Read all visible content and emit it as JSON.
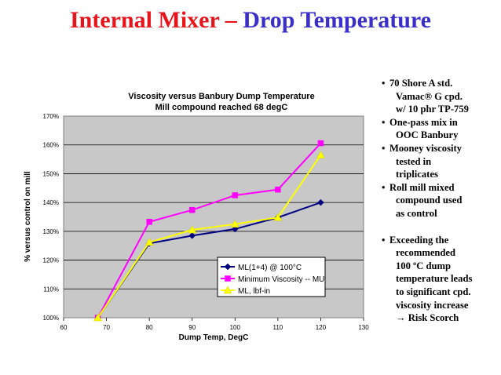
{
  "slide": {
    "title_part1": "Internal Mixer – ",
    "title_part2": "Drop Temperature",
    "colors": {
      "title_red": "#e8141c",
      "title_blue": "#3a2fc8"
    }
  },
  "chart_data": {
    "type": "line",
    "title": "Viscosity versus Banbury Dump Temperature",
    "subtitle": "Mill compound reached 68 degC",
    "xlabel": "Dump Temp, DegC",
    "ylabel": "% versus control on mill",
    "xlim": [
      60,
      130
    ],
    "ylim": [
      100,
      170
    ],
    "x_ticks": [
      "60",
      "70",
      "80",
      "90",
      "100",
      "110",
      "120",
      "130"
    ],
    "y_ticks": [
      "100%",
      "110%",
      "120%",
      "130%",
      "140%",
      "150%",
      "160%",
      "170%"
    ],
    "grid": true,
    "legend": "center-right",
    "series": [
      {
        "name": "ML(1+4) @ 100°C",
        "color": "#000080",
        "marker": "diamond",
        "x": [
          68,
          80,
          90,
          100,
          110,
          120
        ],
        "values": [
          100,
          125.8,
          128.5,
          130.8,
          134.8,
          140.0
        ]
      },
      {
        "name": "Minimum Viscosity -- MU",
        "color": "#ff00ff",
        "marker": "square",
        "x": [
          68,
          80,
          90,
          100,
          110,
          120
        ],
        "values": [
          100,
          133.3,
          137.4,
          142.5,
          144.5,
          160.6
        ]
      },
      {
        "name": "ML, lbf-in",
        "color": "#ffff00",
        "marker": "triangle",
        "x": [
          68,
          80,
          90,
          100,
          110,
          120
        ],
        "values": [
          100,
          126.2,
          130.5,
          132.5,
          134.8,
          156.5
        ]
      }
    ]
  },
  "bullets": {
    "items": [
      {
        "lines": [
          "70 Shore A std.",
          "Vamac® G cpd.",
          "w/ 10 phr TP-759"
        ]
      },
      {
        "lines": [
          "One-pass mix in",
          "OOC Banbury"
        ]
      },
      {
        "lines": [
          "Mooney viscosity",
          "tested in",
          "triplicates"
        ]
      },
      {
        "lines": [
          "Roll mill mixed",
          "compound used",
          "as control"
        ]
      },
      {
        "lines": [
          "Exceeding the",
          "recommended",
          "100 ºC dump",
          "temperature leads",
          "to significant cpd.",
          "viscosity increase",
          "→ Risk Scorch"
        ]
      }
    ]
  }
}
